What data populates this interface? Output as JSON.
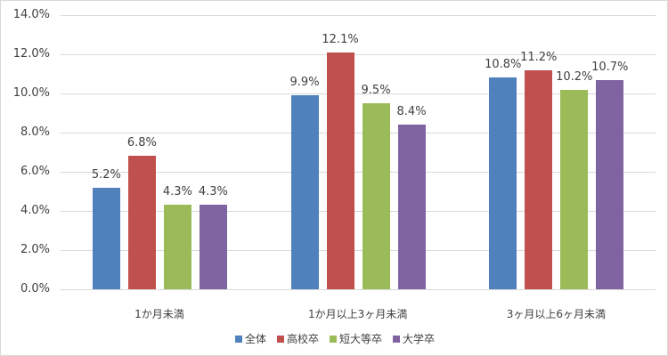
{
  "chart_data": {
    "type": "bar",
    "title": "",
    "xlabel": "",
    "ylabel": "",
    "ylim": [
      0,
      14
    ],
    "yticks": [
      "0.0%",
      "2.0%",
      "4.0%",
      "6.0%",
      "8.0%",
      "10.0%",
      "12.0%",
      "14.0%"
    ],
    "grid": true,
    "legend_position": "bottom",
    "categories": [
      "1か月未満",
      "1か月以上3ヶ月未満",
      "3ヶ月以上6ヶ月未満"
    ],
    "series": [
      {
        "name": "全体",
        "color": "#4f81bd",
        "values": [
          5.2,
          9.9,
          10.8
        ],
        "labels": [
          "5.2%",
          "9.9%",
          "10.8%"
        ]
      },
      {
        "name": "高校卒",
        "color": "#c0504d",
        "values": [
          6.8,
          12.1,
          11.2
        ],
        "labels": [
          "6.8%",
          "12.1%",
          "11.2%"
        ]
      },
      {
        "name": "短大等卒",
        "color": "#9bbb59",
        "values": [
          4.3,
          9.5,
          10.2
        ],
        "labels": [
          "4.3%",
          "9.5%",
          "10.2%"
        ]
      },
      {
        "name": "大学卒",
        "color": "#8064a2",
        "values": [
          4.3,
          8.4,
          10.7
        ],
        "labels": [
          "4.3%",
          "8.4%",
          "10.7%"
        ]
      }
    ]
  }
}
